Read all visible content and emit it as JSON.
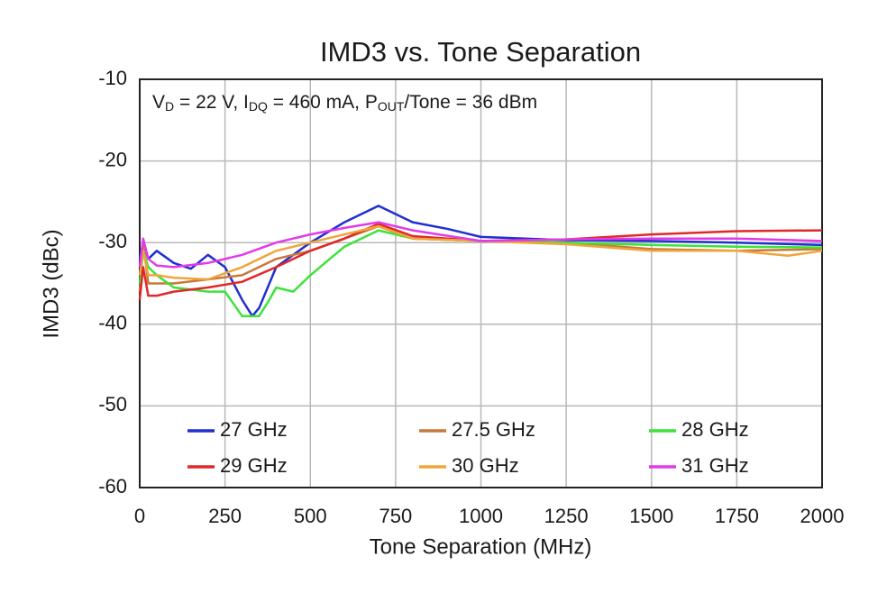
{
  "chart_data": {
    "type": "line",
    "title": "IMD3 vs. Tone Separation",
    "annotation_parts": [
      "V",
      "D",
      " = 22 V, I",
      "DQ",
      " = 460 mA, P",
      "OUT",
      "/Tone = 36 dBm"
    ],
    "x_label": "Tone Separation (MHz)",
    "y_label": "IMD3 (dBc)",
    "xlim": [
      0,
      2000
    ],
    "xticks": [
      0,
      250,
      500,
      750,
      1000,
      1250,
      1500,
      1750,
      2000
    ],
    "ylim": [
      -60,
      -10
    ],
    "yticks": [
      -60,
      -50,
      -40,
      -30,
      -20,
      -10
    ],
    "grid": true,
    "series": [
      {
        "name": "27 GHz",
        "color": "#1f2fd0",
        "x": [
          0,
          10,
          25,
          50,
          100,
          150,
          200,
          250,
          300,
          330,
          350,
          400,
          450,
          500,
          600,
          700,
          800,
          900,
          1000,
          1250,
          1500,
          1750,
          2000
        ],
        "values": [
          -32,
          -30,
          -32,
          -31,
          -32.5,
          -33.2,
          -31.5,
          -33,
          -37,
          -39,
          -38,
          -33,
          -31.5,
          -30,
          -27.5,
          -25.5,
          -27.5,
          -28.3,
          -29.3,
          -29.7,
          -29.8,
          -30,
          -30.3
        ]
      },
      {
        "name": "27.5 GHz",
        "color": "#c8793a",
        "x": [
          0,
          10,
          25,
          50,
          100,
          200,
          300,
          400,
          500,
          600,
          700,
          800,
          1000,
          1250,
          1500,
          1750,
          2000
        ],
        "values": [
          -36,
          -30,
          -35,
          -35,
          -35,
          -34.5,
          -34,
          -32,
          -31,
          -29.5,
          -28,
          -29.5,
          -29.8,
          -30,
          -30.8,
          -31,
          -30.8
        ]
      },
      {
        "name": "28 GHz",
        "color": "#3de23a",
        "x": [
          0,
          10,
          25,
          50,
          100,
          200,
          250,
          300,
          350,
          380,
          400,
          450,
          500,
          600,
          700,
          800,
          1000,
          1250,
          1500,
          1750,
          2000
        ],
        "values": [
          -35,
          -31,
          -33,
          -34,
          -35.5,
          -36,
          -36,
          -39,
          -39,
          -37,
          -35.5,
          -36,
          -34,
          -30.5,
          -28.5,
          -29.5,
          -29.8,
          -30,
          -30.3,
          -30.5,
          -30.6
        ]
      },
      {
        "name": "29 GHz",
        "color": "#e0282a",
        "x": [
          0,
          10,
          25,
          50,
          100,
          200,
          300,
          400,
          500,
          600,
          700,
          800,
          1000,
          1250,
          1500,
          1750,
          2000
        ],
        "values": [
          -37,
          -33,
          -36.5,
          -36.5,
          -36,
          -35.5,
          -34.8,
          -33,
          -31,
          -29.5,
          -27.7,
          -29.2,
          -29.8,
          -29.6,
          -29,
          -28.6,
          -28.5
        ]
      },
      {
        "name": "30 GHz",
        "color": "#f0a53a",
        "x": [
          0,
          10,
          25,
          50,
          100,
          200,
          300,
          400,
          500,
          600,
          700,
          800,
          1000,
          1250,
          1500,
          1750,
          1900,
          2000
        ],
        "values": [
          -34,
          -31,
          -34,
          -34,
          -34.3,
          -34.5,
          -33,
          -31,
          -30,
          -29,
          -28,
          -29.5,
          -29.8,
          -30.2,
          -31,
          -31,
          -31.6,
          -31
        ]
      },
      {
        "name": "31 GHz",
        "color": "#e23ae8",
        "x": [
          0,
          10,
          25,
          50,
          100,
          200,
          300,
          400,
          500,
          600,
          700,
          800,
          1000,
          1250,
          1500,
          1750,
          2000
        ],
        "values": [
          -33,
          -29.5,
          -32,
          -32.8,
          -33,
          -32.5,
          -31.5,
          -30,
          -29,
          -28.2,
          -27.5,
          -28.5,
          -29.8,
          -29.6,
          -29.5,
          -29.5,
          -29.8
        ]
      }
    ]
  }
}
